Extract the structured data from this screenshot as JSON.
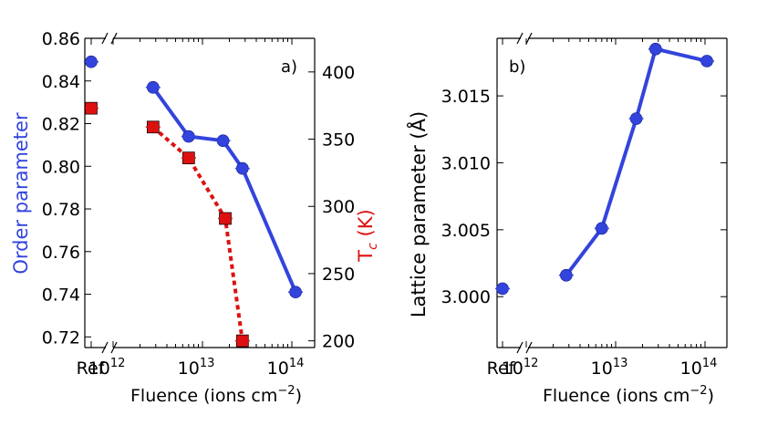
{
  "chart_data": [
    {
      "type": "line",
      "panel_label": "a)",
      "xlabel": "Fluence (ions cm",
      "xlabel_sup": "−2",
      "xlabel_tail": ")",
      "x_scale": "log",
      "x_ticks": [
        {
          "pos": "ref",
          "label": "Ref"
        },
        {
          "pos": 1000000000000.0,
          "base": "10",
          "exp": "12"
        },
        {
          "pos": 10000000000000.0,
          "base": "10",
          "exp": "13"
        },
        {
          "pos": 100000000000000.0,
          "base": "10",
          "exp": "14"
        }
      ],
      "left_axis": {
        "label": "Order parameter",
        "color": "#3344dd",
        "ylim": [
          0.715,
          0.86
        ],
        "ticks": [
          "0.72",
          "0.74",
          "0.76",
          "0.78",
          "0.80",
          "0.82",
          "0.84",
          "0.86"
        ]
      },
      "right_axis": {
        "label_main": "T",
        "label_sub": "c",
        "label_tail": " (K)",
        "color": "#dd1111",
        "ylim": [
          195,
          425
        ],
        "ticks": [
          "200",
          "250",
          "300",
          "350",
          "400"
        ]
      },
      "series": [
        {
          "name": "Order parameter",
          "axis": "left",
          "marker": "circle",
          "color": "#3344dd",
          "ref": 0.849,
          "x": [
            2800000000000.0,
            7000000000000.0,
            17000000000000.0,
            28000000000000.0,
            110000000000000.0
          ],
          "values": [
            0.837,
            0.814,
            0.812,
            0.799,
            0.741
          ]
        },
        {
          "name": "Tc",
          "axis": "right",
          "marker": "square",
          "color": "#dd1111",
          "ref": 373,
          "x": [
            2800000000000.0,
            7000000000000.0,
            18000000000000.0,
            28000000000000.0
          ],
          "values": [
            359,
            336,
            291,
            200
          ]
        }
      ]
    },
    {
      "type": "line",
      "panel_label": "b)",
      "xlabel": "Fluence (ions cm",
      "xlabel_sup": "−2",
      "xlabel_tail": ")",
      "x_scale": "log",
      "x_ticks": [
        {
          "pos": "ref",
          "label": "Ref"
        },
        {
          "pos": 1000000000000.0,
          "base": "10",
          "exp": "12"
        },
        {
          "pos": 10000000000000.0,
          "base": "10",
          "exp": "13"
        },
        {
          "pos": 100000000000000.0,
          "base": "10",
          "exp": "14"
        }
      ],
      "left_axis": {
        "label": "Lattice parameter (Å)",
        "color": "#000000",
        "ylim": [
          2.9962,
          3.0193
        ],
        "ticks": [
          "3.000",
          "3.005",
          "3.010",
          "3.015"
        ]
      },
      "series": [
        {
          "name": "Lattice parameter",
          "axis": "left",
          "marker": "circle",
          "color": "#3344dd",
          "ref": 3.0006,
          "x": [
            2800000000000.0,
            7000000000000.0,
            17000000000000.0,
            28000000000000.0,
            105000000000000.0
          ],
          "values": [
            3.0016,
            3.0051,
            3.0133,
            3.0185,
            3.0176
          ]
        }
      ]
    }
  ]
}
